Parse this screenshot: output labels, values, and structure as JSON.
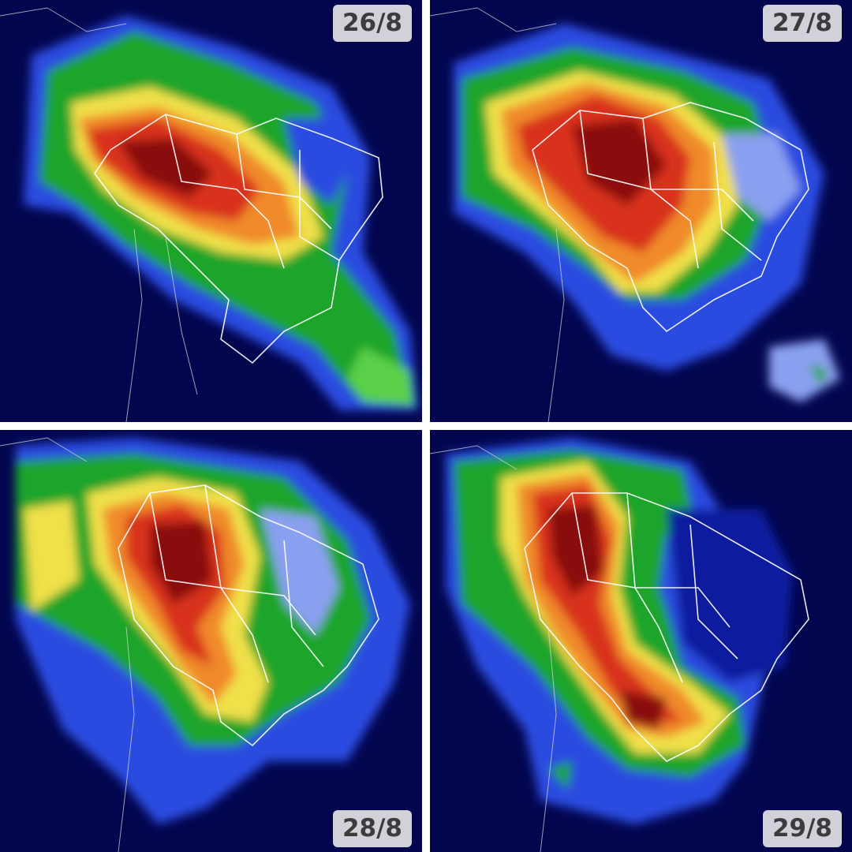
{
  "panels": [
    {
      "date": "26/8",
      "badge_position": "top-right"
    },
    {
      "date": "27/8",
      "badge_position": "top-right"
    },
    {
      "date": "28/8",
      "badge_position": "bottom-right"
    },
    {
      "date": "29/8",
      "badge_position": "bottom-right"
    }
  ],
  "colors": {
    "background": "#03064f",
    "deep_blue": "#0a1a9e",
    "blue": "#2a4be0",
    "light_blue": "#8aa0f0",
    "green": "#1fa52a",
    "light_green": "#5ad04a",
    "yellow": "#f0e04a",
    "orange": "#f08a2a",
    "red": "#d8321e",
    "dark_red": "#8a1010",
    "borders": "#ffffff"
  }
}
